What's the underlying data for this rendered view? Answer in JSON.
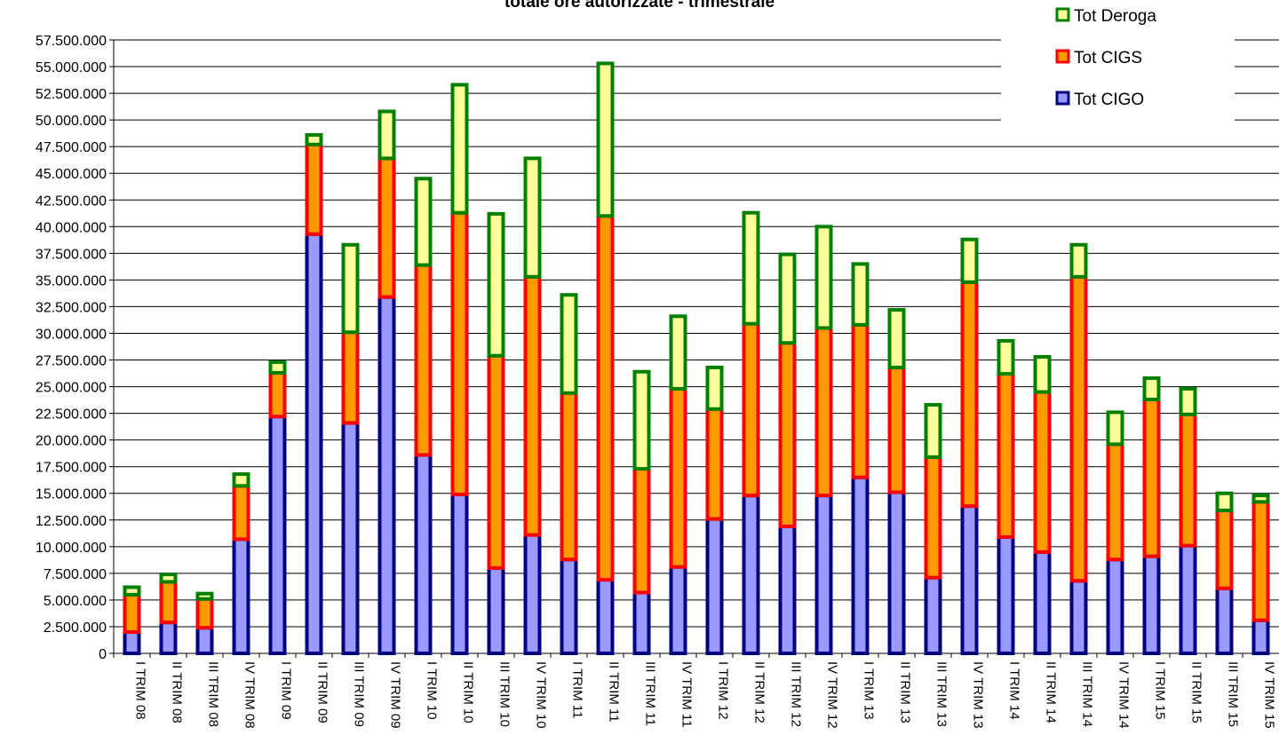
{
  "chart_data": {
    "type": "bar",
    "stacked": true,
    "title": "totale ore autorizzate - trimestrale",
    "xlabel": "",
    "ylabel": "",
    "ylim": [
      0,
      57500000
    ],
    "y_ticks": [
      "0",
      "2.500.000",
      "5.000.000",
      "7.500.000",
      "10.000.000",
      "12.500.000",
      "15.000.000",
      "17.500.000",
      "20.000.000",
      "22.500.000",
      "25.000.000",
      "27.500.000",
      "30.000.000",
      "32.500.000",
      "35.000.000",
      "37.500.000",
      "40.000.000",
      "42.500.000",
      "45.000.000",
      "47.500.000",
      "50.000.000",
      "52.500.000",
      "55.000.000",
      "57.500.000"
    ],
    "grid": true,
    "legend_position": "top-right",
    "categories": [
      "I TRIM 08",
      "II TRIM 08",
      "III TRIM 08",
      "IV TRIM 08",
      "I TRIM 09",
      "II TRIM 09",
      "III TRIM 09",
      "IV TRIM 09",
      "I TRIM 10",
      "II TRIM 10",
      "III TRIM 10",
      "IV TRIM 10",
      "I TRIM 11",
      "II TRIM 11",
      "III TRIM 11",
      "IV TRIM 11",
      "I TRIM 12",
      "II TRIM 12",
      "III TRIM 12",
      "IV TRIM 12",
      "I TRIM 13",
      "II TRIM 13",
      "III TRIM 13",
      "IV TRIM 13",
      "I TRIM 14",
      "II TRIM 14",
      "III TRIM 14",
      "IV TRIM 14",
      "I TRIM 15",
      "II TRIM 15",
      "III TRIM 15",
      "IV TRIM 15"
    ],
    "series": [
      {
        "name": "Tot CIGO",
        "fill": "#9999ff",
        "stroke": "#000080",
        "values": [
          2000000,
          2900000,
          2400000,
          10700000,
          22200000,
          39300000,
          21600000,
          33400000,
          18600000,
          14900000,
          8000000,
          11100000,
          8800000,
          6900000,
          5700000,
          8100000,
          12600000,
          14800000,
          11900000,
          14800000,
          16500000,
          15100000,
          7100000,
          13800000,
          10900000,
          9500000,
          6800000,
          8800000,
          9100000,
          10100000,
          6100000,
          3100000
        ]
      },
      {
        "name": "Tot CIGS",
        "fill": "#ff9900",
        "stroke": "#ff0000",
        "values": [
          3500000,
          3800000,
          2700000,
          5000000,
          4100000,
          8400000,
          8500000,
          13000000,
          17800000,
          26400000,
          19900000,
          24200000,
          15600000,
          34100000,
          11600000,
          16700000,
          10300000,
          16100000,
          17200000,
          15700000,
          14300000,
          11700000,
          11300000,
          21000000,
          15300000,
          15000000,
          28500000,
          10800000,
          14700000,
          12300000,
          7300000,
          11100000
        ]
      },
      {
        "name": "Tot Deroga",
        "fill": "#ffff99",
        "stroke": "#008000",
        "values": [
          700000,
          700000,
          500000,
          1100000,
          1000000,
          900000,
          8200000,
          4400000,
          8100000,
          12000000,
          13300000,
          11100000,
          9200000,
          14300000,
          9100000,
          6800000,
          3900000,
          10400000,
          8300000,
          9500000,
          5700000,
          5400000,
          4900000,
          4000000,
          3100000,
          3300000,
          3000000,
          3000000,
          2000000,
          2400000,
          1600000,
          600000
        ]
      }
    ]
  }
}
